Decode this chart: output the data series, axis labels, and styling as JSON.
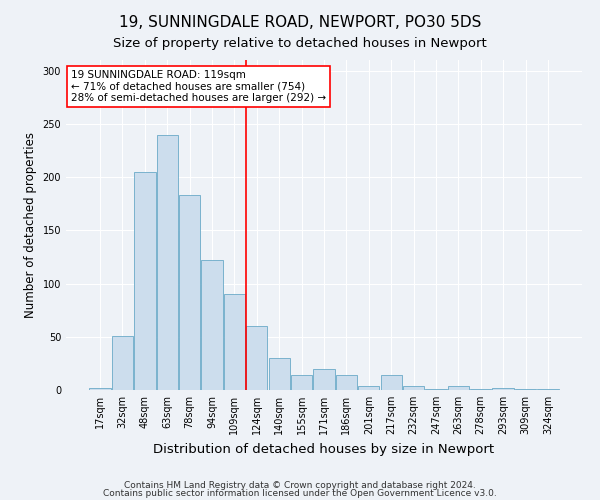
{
  "title1": "19, SUNNINGDALE ROAD, NEWPORT, PO30 5DS",
  "title2": "Size of property relative to detached houses in Newport",
  "xlabel": "Distribution of detached houses by size in Newport",
  "ylabel": "Number of detached properties",
  "bar_color": "#ccdded",
  "bar_edge_color": "#6aaac8",
  "bg_color": "#eef2f7",
  "categories": [
    "17sqm",
    "32sqm",
    "48sqm",
    "63sqm",
    "78sqm",
    "94sqm",
    "109sqm",
    "124sqm",
    "140sqm",
    "155sqm",
    "171sqm",
    "186sqm",
    "201sqm",
    "217sqm",
    "232sqm",
    "247sqm",
    "263sqm",
    "278sqm",
    "293sqm",
    "309sqm",
    "324sqm"
  ],
  "values": [
    2,
    51,
    205,
    240,
    183,
    122,
    90,
    60,
    30,
    14,
    20,
    14,
    4,
    14,
    4,
    1,
    4,
    1,
    2,
    1,
    1
  ],
  "vline_x": 6.5,
  "annotation_text": "19 SUNNINGDALE ROAD: 119sqm\n← 71% of detached houses are smaller (754)\n28% of semi-detached houses are larger (292) →",
  "annotation_box_color": "white",
  "annotation_box_edge_color": "red",
  "vline_color": "red",
  "ylim": [
    0,
    310
  ],
  "yticks": [
    0,
    50,
    100,
    150,
    200,
    250,
    300
  ],
  "footnote1": "Contains HM Land Registry data © Crown copyright and database right 2024.",
  "footnote2": "Contains public sector information licensed under the Open Government Licence v3.0.",
  "title1_fontsize": 11,
  "title2_fontsize": 9.5,
  "xlabel_fontsize": 9.5,
  "ylabel_fontsize": 8.5,
  "tick_fontsize": 7,
  "annotation_fontsize": 7.5,
  "footnote_fontsize": 6.5
}
